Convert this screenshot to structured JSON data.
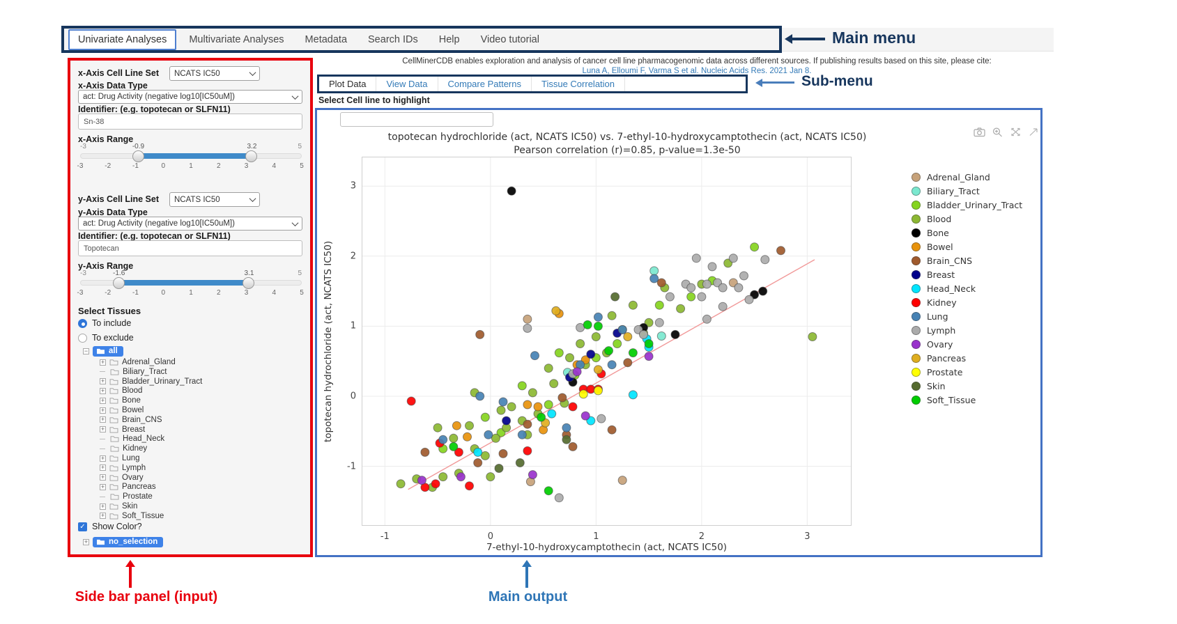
{
  "annotations": {
    "main_menu": "Main menu",
    "sub_menu": "Sub-menu",
    "sidebar": "Side bar panel (input)",
    "main_output": "Main output"
  },
  "main_menu": {
    "items": [
      {
        "label": "Univariate Analyses",
        "active": true
      },
      {
        "label": "Multivariate Analyses",
        "active": false
      },
      {
        "label": "Metadata",
        "active": false
      },
      {
        "label": "Search IDs",
        "active": false
      },
      {
        "label": "Help",
        "active": false
      },
      {
        "label": "Video tutorial",
        "active": false
      }
    ]
  },
  "citation": {
    "line1": "CellMinerCDB enables exploration and analysis of cancer cell line pharmacogenomic data across different sources. If publishing results based on this site, please cite:",
    "line2": "Luna A, Elloumi F, Varma S et al. Nucleic Acids Res. 2021 Jan 8."
  },
  "sub_menu": {
    "items": [
      {
        "label": "Plot Data",
        "active": true
      },
      {
        "label": "View Data",
        "active": false
      },
      {
        "label": "Compare Patterns",
        "active": false
      },
      {
        "label": "Tissue Correlation",
        "active": false
      }
    ]
  },
  "highlight_label": "Select Cell line to highlight",
  "sidebar": {
    "x_axis": {
      "set_label": "x-Axis Cell Line Set",
      "set_value": "NCATS IC50",
      "type_label": "x-Axis Data Type",
      "type_value": "act: Drug Activity (negative log10[IC50uM])",
      "id_label": "Identifier: (e.g. topotecan or SLFN11)",
      "id_value": "Sn-38",
      "range_label": "x-Axis Range",
      "range": {
        "min": -3,
        "max": 5,
        "low": -0.9,
        "high": 3.2,
        "ticks": [
          -3,
          -2,
          -1,
          0,
          1,
          2,
          3,
          4,
          5
        ]
      }
    },
    "y_axis": {
      "set_label": "y-Axis Cell Line Set",
      "set_value": "NCATS IC50",
      "type_label": "y-Axis Data Type",
      "type_value": "act: Drug Activity (negative log10[IC50uM])",
      "id_label": "Identifier: (e.g. topotecan or SLFN11)",
      "id_value": "Topotecan",
      "range_label": "y-Axis Range",
      "range": {
        "min": -3,
        "max": 5,
        "low": -1.6,
        "high": 3.1,
        "ticks": [
          -3,
          -2,
          -1,
          0,
          1,
          2,
          3,
          4,
          5
        ]
      }
    },
    "tissues": {
      "title": "Select Tissues",
      "options": [
        {
          "label": "To include",
          "selected": true
        },
        {
          "label": "To exclude",
          "selected": false
        }
      ],
      "root_label": "all",
      "items": [
        {
          "label": "Adrenal_Gland",
          "expandable": true
        },
        {
          "label": "Biliary_Tract",
          "expandable": false
        },
        {
          "label": "Bladder_Urinary_Tract",
          "expandable": true
        },
        {
          "label": "Blood",
          "expandable": true
        },
        {
          "label": "Bone",
          "expandable": true
        },
        {
          "label": "Bowel",
          "expandable": true
        },
        {
          "label": "Brain_CNS",
          "expandable": true
        },
        {
          "label": "Breast",
          "expandable": true
        },
        {
          "label": "Head_Neck",
          "expandable": false
        },
        {
          "label": "Kidney",
          "expandable": false
        },
        {
          "label": "Lung",
          "expandable": true
        },
        {
          "label": "Lymph",
          "expandable": true
        },
        {
          "label": "Ovary",
          "expandable": true
        },
        {
          "label": "Pancreas",
          "expandable": true
        },
        {
          "label": "Prostate",
          "expandable": false
        },
        {
          "label": "Skin",
          "expandable": true
        },
        {
          "label": "Soft_Tissue",
          "expandable": true
        }
      ],
      "show_color_label": "Show Color?",
      "show_color_checked": true,
      "selection_label": "no_selection"
    }
  },
  "modebar_icons": [
    "camera-icon",
    "zoom-icon",
    "autoscale-icon",
    "reset-axes-icon"
  ],
  "colors": {
    "annotation_navy": "#17365d",
    "annotation_red": "#e8000d",
    "annotation_blue": "#2e75b6",
    "sidebar_border": "#e8000d",
    "main_output_border": "#4472c4",
    "link_blue": "#337ab7",
    "slider_fill": "#3f8ac9",
    "tree_selected_bg": "#3e82e8",
    "regression_line": "#f19999"
  },
  "chart_data": {
    "type": "scatter",
    "title": "topotecan hydrochloride (act, NCATS IC50) vs. 7-ethyl-10-hydroxycamptothecin (act, NCATS IC50)",
    "subtitle": "Pearson correlation (r)=0.85, p-value=1.3e-50",
    "xlabel": "7-ethyl-10-hydroxycamptothecin (act, NCATS IC50)",
    "ylabel": "topotecan hydrochloride (act, NCATS IC50)",
    "xlim": [
      -1.22,
      3.42
    ],
    "ylim": [
      -1.85,
      3.42
    ],
    "xticks": [
      -1,
      0,
      1,
      2,
      3
    ],
    "yticks": [
      -1,
      0,
      1,
      2,
      3
    ],
    "grid": true,
    "legend_position": "right",
    "regression_line": {
      "x1": -0.78,
      "y1": -1.33,
      "x2": 3.07,
      "y2": 1.95
    },
    "series": [
      {
        "name": "Adrenal_Gland",
        "color": "#C7A27A",
        "points": [
          [
            0.38,
            -1.22
          ],
          [
            1.25,
            -1.2
          ],
          [
            0.35,
            1.1
          ],
          [
            2.3,
            1.62
          ]
        ]
      },
      {
        "name": "Biliary_Tract",
        "color": "#7BE8CF",
        "points": [
          [
            1.55,
            1.79
          ],
          [
            0.73,
            0.34
          ],
          [
            1.62,
            0.86
          ]
        ]
      },
      {
        "name": "Bladder_Urinary_Tract",
        "color": "#85D41E",
        "points": [
          [
            -0.45,
            -0.75
          ],
          [
            -0.05,
            -0.3
          ],
          [
            0.1,
            -0.52
          ],
          [
            0.3,
            0.15
          ],
          [
            0.55,
            -0.12
          ],
          [
            0.8,
            0.3
          ],
          [
            1.0,
            0.55
          ],
          [
            1.2,
            0.75
          ],
          [
            1.45,
            0.9
          ],
          [
            1.6,
            1.3
          ],
          [
            1.9,
            1.42
          ],
          [
            2.1,
            1.65
          ],
          [
            2.5,
            2.13
          ],
          [
            0.65,
            0.62
          ]
        ]
      },
      {
        "name": "Blood",
        "color": "#8CB832",
        "points": [
          [
            -0.85,
            -1.25
          ],
          [
            -0.7,
            -1.18
          ],
          [
            -0.55,
            -1.3
          ],
          [
            -0.45,
            -1.15
          ],
          [
            -0.3,
            -1.1
          ],
          [
            -0.5,
            -0.45
          ],
          [
            -0.35,
            -0.6
          ],
          [
            -0.2,
            -0.42
          ],
          [
            -0.15,
            -0.75
          ],
          [
            -0.05,
            -0.85
          ],
          [
            0.0,
            -1.15
          ],
          [
            0.05,
            -0.6
          ],
          [
            0.1,
            -0.2
          ],
          [
            0.15,
            -0.45
          ],
          [
            0.2,
            -0.15
          ],
          [
            0.3,
            -0.35
          ],
          [
            0.35,
            -0.55
          ],
          [
            0.4,
            0.05
          ],
          [
            0.45,
            -0.25
          ],
          [
            0.55,
            0.4
          ],
          [
            0.6,
            0.18
          ],
          [
            0.7,
            -0.1
          ],
          [
            0.75,
            0.55
          ],
          [
            0.85,
            0.75
          ],
          [
            0.9,
            0.45
          ],
          [
            1.0,
            0.85
          ],
          [
            1.1,
            0.62
          ],
          [
            1.15,
            1.15
          ],
          [
            1.25,
            0.95
          ],
          [
            1.35,
            1.3
          ],
          [
            1.5,
            1.05
          ],
          [
            1.65,
            1.55
          ],
          [
            1.8,
            1.25
          ],
          [
            2.0,
            1.6
          ],
          [
            2.25,
            1.9
          ],
          [
            3.05,
            0.85
          ],
          [
            -0.15,
            0.05
          ]
        ]
      },
      {
        "name": "Bone",
        "color": "#000000",
        "points": [
          [
            0.2,
            2.93
          ],
          [
            2.5,
            1.45
          ],
          [
            2.58,
            1.5
          ],
          [
            1.75,
            0.88
          ],
          [
            0.78,
            0.2
          ],
          [
            1.45,
            0.98
          ]
        ]
      },
      {
        "name": "Bowel",
        "color": "#E8930C",
        "points": [
          [
            0.65,
            1.18
          ],
          [
            -0.32,
            -0.42
          ],
          [
            -0.22,
            -0.58
          ],
          [
            0.45,
            -0.15
          ],
          [
            0.82,
            0.45
          ],
          [
            0.9,
            0.52
          ],
          [
            0.35,
            -0.12
          ],
          [
            0.5,
            -0.48
          ]
        ]
      },
      {
        "name": "Brain_CNS",
        "color": "#A05A2C",
        "points": [
          [
            -0.1,
            0.88
          ],
          [
            2.75,
            2.08
          ],
          [
            1.62,
            1.62
          ],
          [
            1.3,
            0.48
          ],
          [
            0.35,
            -0.4
          ],
          [
            0.12,
            -0.82
          ],
          [
            -0.12,
            -0.95
          ],
          [
            -0.62,
            -0.8
          ],
          [
            0.68,
            -0.02
          ],
          [
            0.72,
            -0.55
          ],
          [
            0.78,
            -0.72
          ],
          [
            1.15,
            -0.48
          ]
        ]
      },
      {
        "name": "Breast",
        "color": "#00008B",
        "points": [
          [
            0.95,
            0.6
          ],
          [
            0.75,
            0.27
          ],
          [
            0.15,
            -0.35
          ],
          [
            1.2,
            0.9
          ]
        ]
      },
      {
        "name": "Head_Neck",
        "color": "#00E5FF",
        "points": [
          [
            1.48,
            0.82
          ],
          [
            1.5,
            0.7
          ],
          [
            -0.12,
            -0.8
          ],
          [
            0.58,
            -0.25
          ],
          [
            1.35,
            0.02
          ],
          [
            0.95,
            -0.35
          ]
        ]
      },
      {
        "name": "Kidney",
        "color": "#FF0000",
        "points": [
          [
            -0.75,
            -0.07
          ],
          [
            -0.62,
            -1.3
          ],
          [
            -0.48,
            -0.67
          ],
          [
            -0.3,
            -0.8
          ],
          [
            -0.52,
            -1.25
          ],
          [
            0.88,
            0.1
          ],
          [
            0.95,
            0.1
          ],
          [
            1.02,
            0.1
          ],
          [
            0.78,
            -0.15
          ],
          [
            1.05,
            0.32
          ],
          [
            -0.2,
            -1.28
          ],
          [
            0.35,
            -0.78
          ]
        ]
      },
      {
        "name": "Lung",
        "color": "#4682B4",
        "points": [
          [
            1.02,
            1.13
          ],
          [
            1.55,
            1.68
          ],
          [
            -0.45,
            -0.62
          ],
          [
            -0.02,
            -0.55
          ],
          [
            -0.1,
            0.0
          ],
          [
            0.12,
            -0.08
          ],
          [
            0.85,
            0.45
          ],
          [
            0.42,
            0.58
          ],
          [
            0.72,
            -0.45
          ],
          [
            1.25,
            0.95
          ],
          [
            0.3,
            -0.55
          ],
          [
            1.15,
            0.45
          ]
        ]
      },
      {
        "name": "Lymph",
        "color": "#ABABAB",
        "points": [
          [
            1.95,
            1.97
          ],
          [
            2.1,
            1.85
          ],
          [
            2.3,
            1.97
          ],
          [
            2.05,
            1.6
          ],
          [
            2.15,
            1.62
          ],
          [
            2.2,
            1.55
          ],
          [
            1.85,
            1.6
          ],
          [
            1.9,
            1.55
          ],
          [
            2.0,
            1.42
          ],
          [
            2.35,
            1.55
          ],
          [
            2.4,
            1.72
          ],
          [
            2.45,
            1.38
          ],
          [
            2.2,
            1.28
          ],
          [
            2.05,
            1.1
          ],
          [
            1.7,
            1.42
          ],
          [
            1.6,
            1.05
          ],
          [
            0.85,
            0.98
          ],
          [
            1.4,
            0.95
          ],
          [
            1.45,
            0.88
          ],
          [
            0.78,
            0.32
          ],
          [
            1.05,
            -0.32
          ],
          [
            0.65,
            -1.45
          ],
          [
            0.35,
            0.97
          ],
          [
            2.6,
            1.95
          ]
        ]
      },
      {
        "name": "Ovary",
        "color": "#9932CC",
        "points": [
          [
            -0.65,
            -1.2
          ],
          [
            -0.28,
            -1.15
          ],
          [
            1.5,
            0.57
          ],
          [
            0.82,
            0.35
          ],
          [
            0.9,
            -0.28
          ],
          [
            0.4,
            -1.12
          ]
        ]
      },
      {
        "name": "Pancreas",
        "color": "#DFAE1F",
        "points": [
          [
            0.62,
            1.22
          ],
          [
            1.02,
            0.38
          ],
          [
            0.52,
            -0.38
          ],
          [
            1.3,
            0.85
          ]
        ]
      },
      {
        "name": "Prostate",
        "color": "#FFFF00",
        "points": [
          [
            1.02,
            0.08
          ],
          [
            0.88,
            0.03
          ]
        ]
      },
      {
        "name": "Skin",
        "color": "#556B2F",
        "points": [
          [
            0.08,
            -1.03
          ],
          [
            0.72,
            -0.62
          ],
          [
            1.18,
            1.42
          ],
          [
            0.28,
            -0.95
          ]
        ]
      },
      {
        "name": "Soft_Tissue",
        "color": "#00CD00",
        "points": [
          [
            -0.35,
            -0.72
          ],
          [
            0.48,
            -0.3
          ],
          [
            1.12,
            0.65
          ],
          [
            0.92,
            1.02
          ],
          [
            1.02,
            1.0
          ],
          [
            1.35,
            0.62
          ],
          [
            0.55,
            -1.35
          ],
          [
            1.5,
            0.75
          ]
        ]
      }
    ]
  }
}
